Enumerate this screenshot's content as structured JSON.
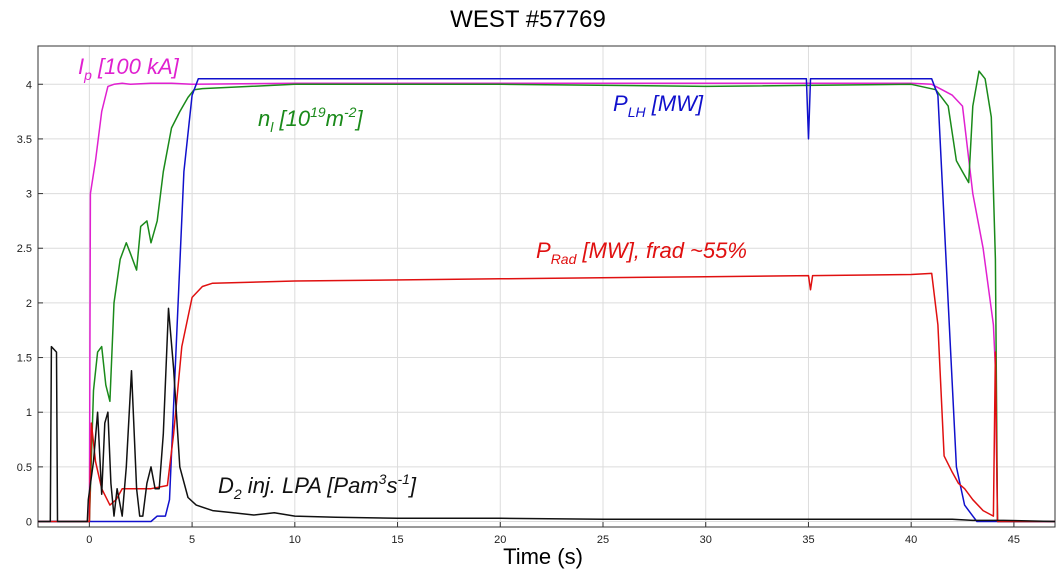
{
  "chart_data": {
    "type": "line",
    "title": "WEST #57769",
    "xlabel": "Time (s)",
    "ylabel": "",
    "xlim": [
      -2.5,
      47
    ],
    "ylim": [
      -0.05,
      4.35
    ],
    "grid": true,
    "x_ticks": [
      0,
      5,
      10,
      15,
      20,
      25,
      30,
      35,
      40,
      45
    ],
    "x_tick_labels": [
      "0",
      "5",
      "10",
      "15",
      "20",
      "25",
      "30",
      "35",
      "40",
      "45"
    ],
    "y_ticks": [
      0,
      0.5,
      1,
      1.5,
      2,
      2.5,
      3,
      3.5,
      4
    ],
    "y_tick_labels": [
      "0",
      "0.5",
      "1",
      "1.5",
      "2",
      "2.5",
      "3",
      "3.5",
      "4"
    ],
    "annotations": {
      "ip": {
        "main": "I",
        "sub": "p",
        "rest": " [100 kA]",
        "color": "#e020d0"
      },
      "nl": {
        "main": "n",
        "sub": "l",
        "mid": " [10",
        "sup1": "19",
        "mid2": "m",
        "sup2": "-2",
        "rest": "]",
        "color": "#1a8a1a"
      },
      "plh": {
        "main": "P",
        "sub": "LH",
        "rest": " [MW]",
        "color": "#1010cc"
      },
      "prad": {
        "main": "P",
        "sub": "Rad",
        "rest": " [MW], frad ~55%",
        "color": "#e01010"
      },
      "d2": {
        "main": "D",
        "sub": "2",
        "mid": " inj. LPA [Pam",
        "sup1": "3",
        "mid2": "s",
        "sup2": "-1",
        "rest": "]",
        "color": "#111111"
      }
    },
    "series": [
      {
        "key": "ip",
        "color": "#e020d0",
        "x": [
          -2.5,
          -0.2,
          0,
          0.05,
          0.3,
          0.6,
          0.9,
          1.2,
          1.6,
          2.0,
          3.0,
          4.0,
          5.0,
          10,
          20,
          30,
          40,
          41.0,
          41.5,
          42.0,
          42.5,
          43.0,
          43.5,
          44.0,
          44.1,
          44.2,
          47
        ],
        "y": [
          0,
          0,
          0,
          3.0,
          3.3,
          3.75,
          3.98,
          4.0,
          4.01,
          4.0,
          4.01,
          4.01,
          4.0,
          4.01,
          4.01,
          4.01,
          4.01,
          4.0,
          3.95,
          3.9,
          3.8,
          3.0,
          2.5,
          1.8,
          1.4,
          0,
          0
        ]
      },
      {
        "key": "nl",
        "color": "#1a8a1a",
        "x": [
          -2.5,
          -0.2,
          0,
          0.2,
          0.4,
          0.6,
          0.8,
          1.0,
          1.2,
          1.5,
          1.8,
          2.0,
          2.3,
          2.5,
          2.8,
          3.0,
          3.3,
          3.6,
          4.0,
          4.4,
          4.8,
          5.1,
          5.5,
          10,
          20,
          30,
          40,
          41.2,
          41.8,
          42.2,
          42.5,
          42.8,
          43.0,
          43.3,
          43.6,
          43.9,
          44.1,
          44.2,
          47
        ],
        "y": [
          0,
          0,
          0,
          1.2,
          1.55,
          1.6,
          1.25,
          1.1,
          2.0,
          2.4,
          2.55,
          2.45,
          2.3,
          2.7,
          2.75,
          2.55,
          2.75,
          3.2,
          3.6,
          3.75,
          3.88,
          3.95,
          3.96,
          4.0,
          4.0,
          3.98,
          4.0,
          3.95,
          3.8,
          3.3,
          3.2,
          3.1,
          3.8,
          4.12,
          4.05,
          3.7,
          2.4,
          0,
          0
        ]
      },
      {
        "key": "plh",
        "color": "#1010cc",
        "x": [
          -2.5,
          3.0,
          3.3,
          3.7,
          3.9,
          4.2,
          4.6,
          5.0,
          5.3,
          5.5,
          10,
          20,
          30,
          34.9,
          35.0,
          35.1,
          40,
          41.0,
          41.3,
          41.8,
          42.2,
          42.6,
          43.0,
          43.2,
          44.5,
          47
        ],
        "y": [
          0,
          0,
          0.05,
          0.05,
          0.2,
          1.5,
          3.2,
          3.9,
          4.05,
          4.05,
          4.05,
          4.05,
          4.05,
          4.05,
          3.5,
          4.05,
          4.05,
          4.05,
          3.9,
          2.0,
          0.5,
          0.15,
          0.05,
          0,
          0,
          0
        ]
      },
      {
        "key": "prad",
        "color": "#e01010",
        "x": [
          -2.5,
          -0.2,
          0,
          0.1,
          0.3,
          0.6,
          1.0,
          1.3,
          1.6,
          2.0,
          3.0,
          3.8,
          4.1,
          4.5,
          5.0,
          5.5,
          6,
          10,
          20,
          30,
          35.0,
          35.1,
          35.2,
          40,
          41.0,
          41.3,
          41.6,
          42.0,
          42.3,
          42.6,
          43.0,
          43.5,
          44.0,
          44.1,
          44.2,
          47
        ],
        "y": [
          0,
          0,
          0,
          0.9,
          0.55,
          0.3,
          0.15,
          0.2,
          0.3,
          0.3,
          0.3,
          0.33,
          0.8,
          1.6,
          2.05,
          2.15,
          2.18,
          2.2,
          2.22,
          2.24,
          2.25,
          2.12,
          2.25,
          2.26,
          2.27,
          1.8,
          0.6,
          0.45,
          0.35,
          0.3,
          0.2,
          0.1,
          0.05,
          1.55,
          0,
          0
        ]
      },
      {
        "key": "d2",
        "color": "#111111",
        "x": [
          -2.5,
          -1.9,
          -1.85,
          -1.6,
          -1.55,
          -0.1,
          -0.05,
          0.2,
          0.4,
          0.6,
          0.75,
          0.9,
          1.05,
          1.2,
          1.35,
          1.6,
          1.8,
          2.05,
          2.3,
          2.45,
          2.6,
          2.8,
          3.0,
          3.2,
          3.4,
          3.6,
          3.85,
          4.1,
          4.4,
          4.8,
          5.2,
          6,
          7,
          8,
          9,
          10,
          12,
          15,
          20,
          25,
          30,
          35,
          40,
          41,
          42,
          43,
          44,
          44.5,
          47
        ],
        "y": [
          0,
          0,
          1.6,
          1.55,
          0,
          0,
          0.2,
          0.55,
          1.0,
          0.25,
          0.9,
          1.0,
          0.35,
          0.05,
          0.3,
          0.05,
          0.5,
          1.38,
          0.3,
          0.05,
          0.05,
          0.35,
          0.5,
          0.3,
          0.3,
          0.8,
          1.95,
          1.4,
          0.5,
          0.22,
          0.15,
          0.1,
          0.08,
          0.06,
          0.08,
          0.05,
          0.04,
          0.03,
          0.03,
          0.02,
          0.02,
          0.02,
          0.02,
          0.02,
          0.02,
          0.01,
          0.01,
          0.01,
          0
        ]
      }
    ]
  }
}
